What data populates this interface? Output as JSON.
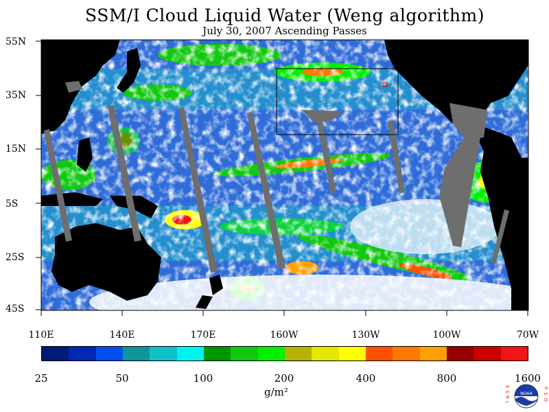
{
  "header": {
    "title": "SSM/I Cloud Liquid Water (Weng algorithm)",
    "subtitle": "July 30, 2007  Ascending Passes"
  },
  "axes": {
    "lat_labels": [
      "55N",
      "35N",
      "15N",
      "5S",
      "25S",
      "45S"
    ],
    "lon_labels": [
      "110E",
      "140E",
      "170E",
      "160W",
      "130W",
      "100W",
      "70W"
    ]
  },
  "colorbar": {
    "colors": [
      "#001a78",
      "#0028b4",
      "#0050f0",
      "#10969a",
      "#10c2c8",
      "#00f2f2",
      "#009600",
      "#10c810",
      "#00f000",
      "#b4b400",
      "#e6e600",
      "#ffff00",
      "#ff5000",
      "#ff7800",
      "#ffa000",
      "#960000",
      "#c80000",
      "#f01414"
    ],
    "tick_labels": [
      "25",
      "50",
      "100",
      "200",
      "400",
      "800",
      "1600"
    ],
    "units": "g/m²"
  },
  "logo": {
    "left_letters": "ESRL",
    "right_letters": "PSD",
    "badge_text": "NOAA"
  }
}
